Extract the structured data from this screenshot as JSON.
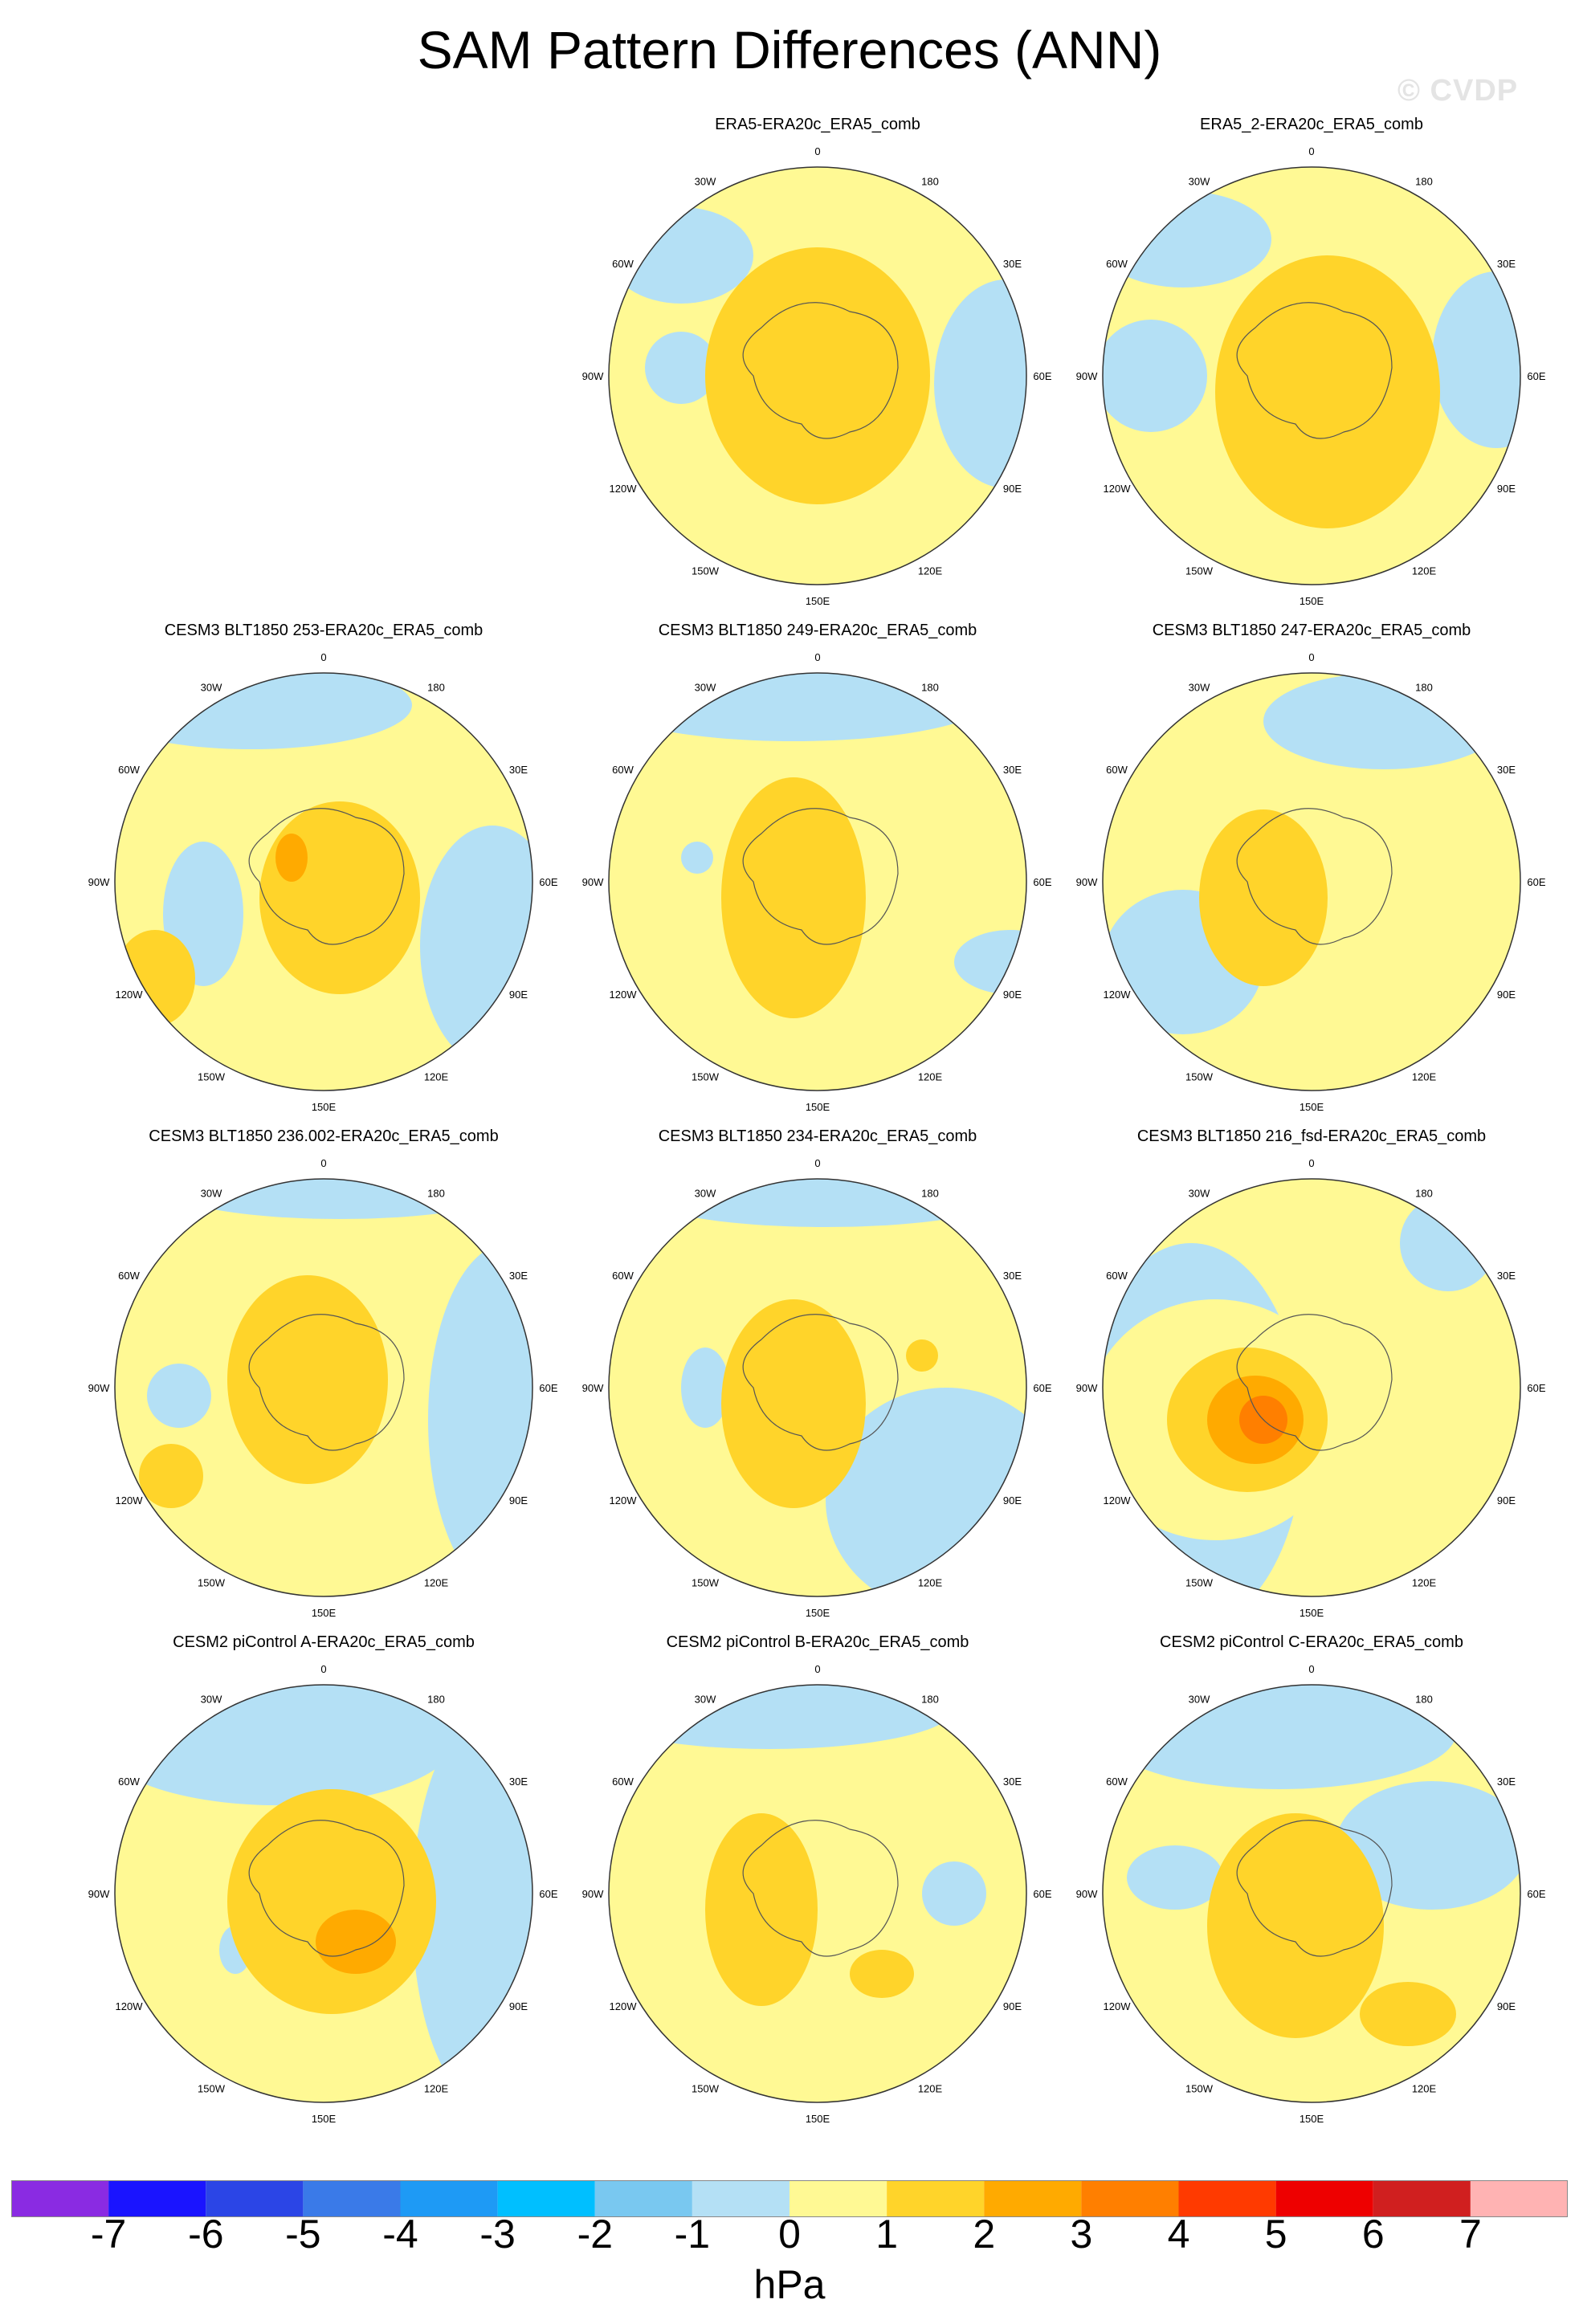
{
  "title": "SAM Pattern Differences (ANN)",
  "watermark": "© CVDP",
  "units": "hPa",
  "colorbar": {
    "levels": [
      -7,
      -6,
      -5,
      -4,
      -3,
      -2,
      -1,
      0,
      1,
      2,
      3,
      4,
      5,
      6,
      7
    ],
    "labels": [
      "-7",
      "-6",
      "-5",
      "-4",
      "-3",
      "-2",
      "-1",
      "0",
      "1",
      "2",
      "3",
      "4",
      "5",
      "6",
      "7"
    ],
    "colors": [
      "#8a2be2",
      "#1a14ff",
      "#2b45e6",
      "#3a7ae8",
      "#1e9af5",
      "#00bfff",
      "#79c8f0",
      "#b4e0f5",
      "#fff994",
      "#ffd42a",
      "#ffaa00",
      "#ff7f00",
      "#ff3a00",
      "#ee0000",
      "#d01f1f",
      "#ffb3b3"
    ]
  },
  "longitude_labels": {
    "0": "0",
    "30E": "30E",
    "60E": "60E",
    "90E": "90E",
    "120E": "120E",
    "150E": "150E",
    "180": "180",
    "150W": "150W",
    "120W": "120W",
    "90W": "90W",
    "60W": "60W",
    "30W": "30W"
  },
  "panels": [
    {
      "title": "ERA5-ERA20c_ERA5_comb",
      "center_class": "2"
    },
    {
      "title": "ERA5_2-ERA20c_ERA5_comb",
      "center_class": "2"
    },
    {
      "title": "CESM3 BLT1850 253-ERA20c_ERA5_comb",
      "center_class": "3"
    },
    {
      "title": "CESM3 BLT1850 249-ERA20c_ERA5_comb",
      "center_class": "2"
    },
    {
      "title": "CESM3 BLT1850 247-ERA20c_ERA5_comb",
      "center_class": "2"
    },
    {
      "title": "CESM3 BLT1850 236.002-ERA20c_ERA5_comb",
      "center_class": "2"
    },
    {
      "title": "CESM3 BLT1850 234-ERA20c_ERA5_comb",
      "center_class": "2"
    },
    {
      "title": "CESM3 BLT1850 216_fsd-ERA20c_ERA5_comb",
      "center_class": "4"
    },
    {
      "title": "CESM2 piControl A-ERA20c_ERA5_comb",
      "center_class": "3"
    },
    {
      "title": "CESM2 piControl B-ERA20c_ERA5_comb",
      "center_class": "2"
    },
    {
      "title": "CESM2 piControl C-ERA20c_ERA5_comb",
      "center_class": "2"
    }
  ]
}
